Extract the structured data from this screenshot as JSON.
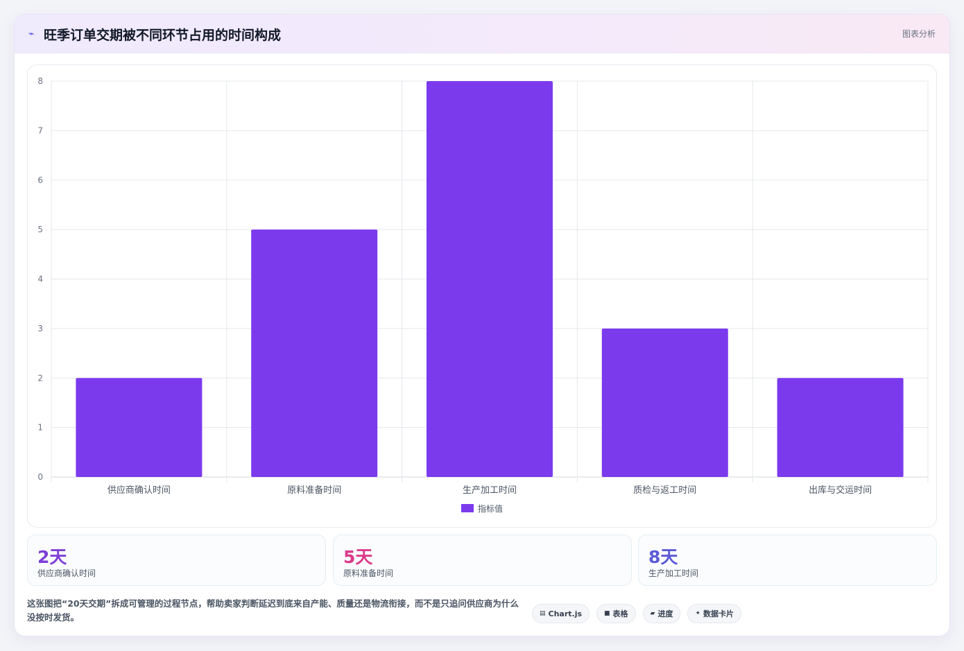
{
  "header": {
    "icon": "wave-icon",
    "title": "旺季订单交期被不同环节占用的时间构成",
    "right_label": "图表分析"
  },
  "chart_data": {
    "type": "bar",
    "categories": [
      "供应商确认时间",
      "原料准备时间",
      "生产加工时间",
      "质检与返工时间",
      "出库与交运时间"
    ],
    "series": [
      {
        "name": "指标值",
        "values": [
          2,
          5,
          8,
          3,
          2
        ],
        "color": "#7c3aed"
      }
    ],
    "ylim": [
      0,
      8
    ],
    "yticks": [
      0,
      1,
      2,
      3,
      4,
      5,
      6,
      7,
      8
    ],
    "grid": true,
    "legend": "bottom"
  },
  "stats": [
    {
      "value": "2天",
      "label": "供应商确认时间",
      "color": "#7e3fd6"
    },
    {
      "value": "5天",
      "label": "原料准备时间",
      "color": "#db3a8a"
    },
    {
      "value": "8天",
      "label": "生产加工时间",
      "color": "#5b5bd6"
    }
  ],
  "footer": {
    "text": "这张图把“20天交期”拆成可管理的过程节点，帮助卖家判断延迟到底来自产能、质量还是物流衔接，而不是只追问供应商为什么没按时发货。"
  },
  "tags": [
    {
      "icon": "chart-icon",
      "glyph": "▤",
      "label": "Chart.js"
    },
    {
      "icon": "table-icon",
      "glyph": "■",
      "label": "表格"
    },
    {
      "icon": "progress-icon",
      "glyph": "▰",
      "label": "进度"
    },
    {
      "icon": "sparkle-icon",
      "glyph": "✦",
      "label": "数据卡片"
    }
  ]
}
